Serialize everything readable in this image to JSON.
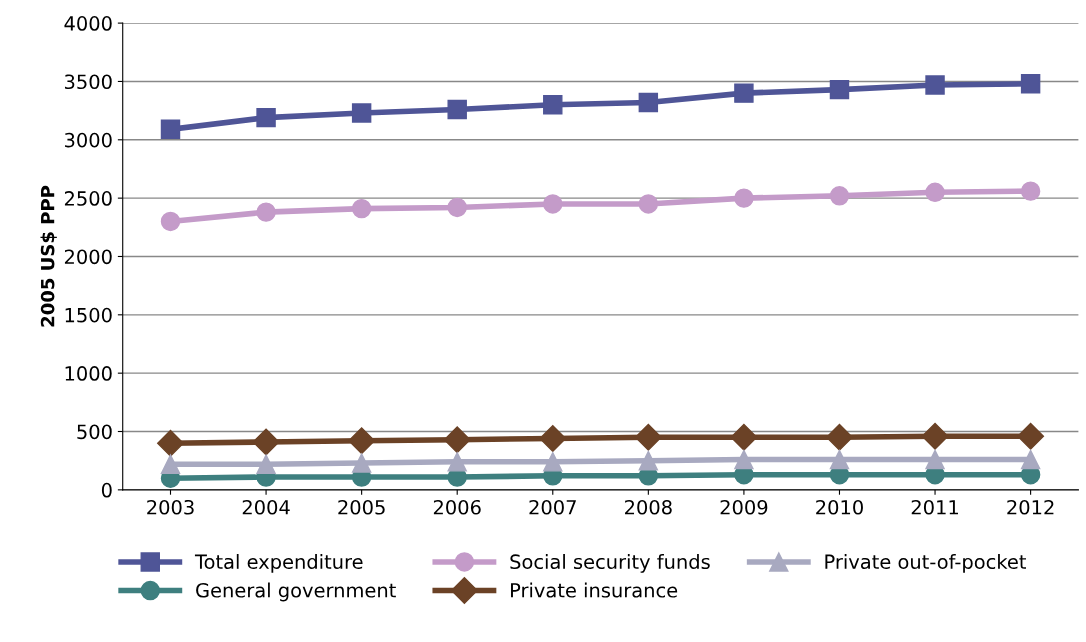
{
  "chart_data": {
    "type": "line",
    "ylabel": "2005 US$ PPP",
    "categories": [
      "2003",
      "2004",
      "2005",
      "2006",
      "2007",
      "2008",
      "2009",
      "2010",
      "2011",
      "2012"
    ],
    "ylim": [
      0,
      4000
    ],
    "yticks": [
      0,
      500,
      1000,
      1500,
      2000,
      2500,
      3000,
      3500,
      4000
    ],
    "grid": "y",
    "legend": "bottom",
    "series": [
      {
        "name": "Total expenditure",
        "color": "#4f5597",
        "marker": "square",
        "values": [
          3090,
          3190,
          3230,
          3260,
          3300,
          3320,
          3400,
          3430,
          3470,
          3480
        ]
      },
      {
        "name": "General government",
        "color": "#3e7f7f",
        "marker": "circle",
        "values": [
          100,
          110,
          110,
          110,
          120,
          120,
          130,
          130,
          130,
          130
        ]
      },
      {
        "name": "Social security funds",
        "color": "#c49bc9",
        "marker": "circle",
        "values": [
          2300,
          2380,
          2410,
          2420,
          2450,
          2450,
          2500,
          2520,
          2550,
          2560
        ]
      },
      {
        "name": "Private insurance",
        "color": "#6b4226",
        "marker": "diamond",
        "values": [
          400,
          410,
          420,
          430,
          440,
          450,
          450,
          450,
          460,
          460
        ]
      },
      {
        "name": "Private out-of-pocket",
        "color": "#a8a9c0",
        "marker": "triangle",
        "values": [
          220,
          220,
          230,
          240,
          240,
          250,
          260,
          260,
          260,
          260
        ]
      }
    ]
  }
}
